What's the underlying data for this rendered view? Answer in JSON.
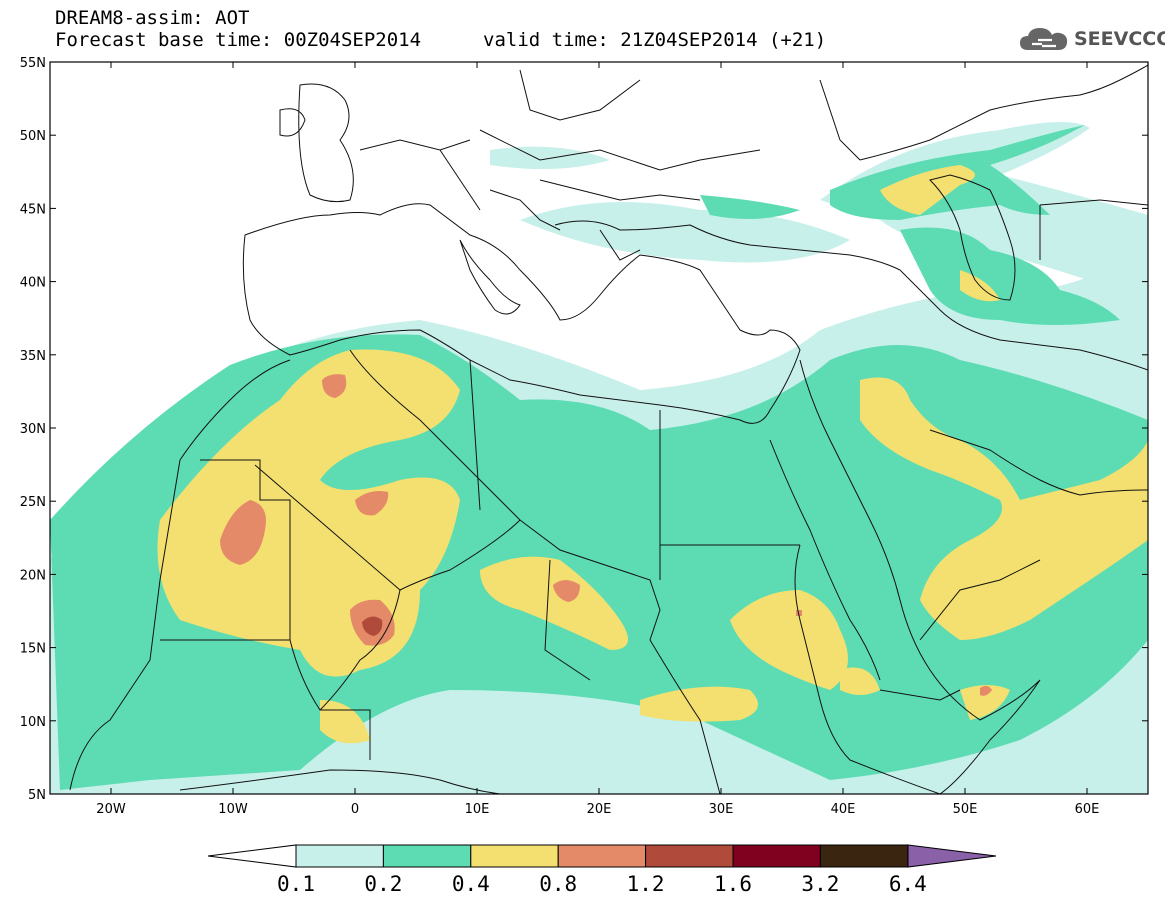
{
  "header": {
    "line1": "DREAM8-assim: AOT",
    "line2": "Forecast base time: 00Z04SEP2014",
    "line3": "valid time: 21Z04SEP2014 (+21)"
  },
  "logo": {
    "text": "SEEVCCC",
    "icon": "cloud-icon"
  },
  "map": {
    "lon_range": [
      -25,
      65
    ],
    "lat_range": [
      5,
      55
    ],
    "lon_ticks": [
      "20W",
      "10W",
      "0",
      "10E",
      "20E",
      "30E",
      "40E",
      "50E",
      "60E"
    ],
    "lat_ticks": [
      "5N",
      "10N",
      "15N",
      "20N",
      "25N",
      "30N",
      "35N",
      "40N",
      "45N",
      "50N",
      "55N"
    ],
    "variable": "AOT"
  },
  "colorbar": {
    "labels": [
      "0.1",
      "0.2",
      "0.4",
      "0.8",
      "1.2",
      "1.6",
      "3.2",
      "6.4"
    ],
    "colors": [
      "#c8f0ea",
      "#5ddcb4",
      "#f3e070",
      "#e58a68",
      "#b04a3a",
      "#800020",
      "#3a2510",
      "#8a60a8"
    ],
    "under_color": "#ffffff",
    "over_color": "#8a60a8"
  }
}
